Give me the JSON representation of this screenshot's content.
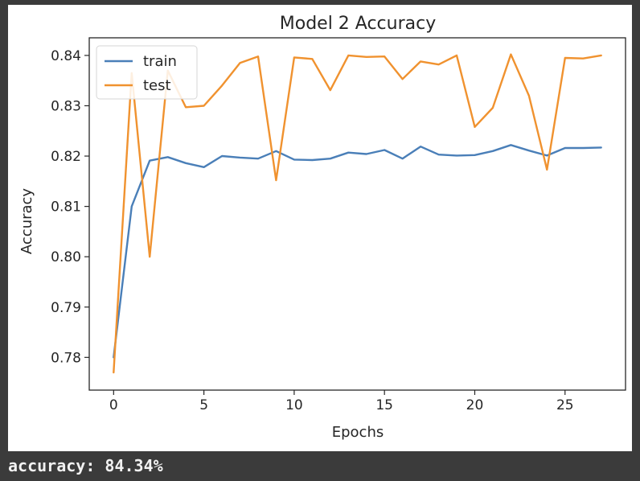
{
  "notebook": {
    "output_text": "accuracy: 84.34%"
  },
  "chart_data": {
    "type": "line",
    "title": "Model 2 Accuracy",
    "xlabel": "Epochs",
    "ylabel": "Accuracy",
    "x": [
      0,
      1,
      2,
      3,
      4,
      5,
      6,
      7,
      8,
      9,
      10,
      11,
      12,
      13,
      14,
      15,
      16,
      17,
      18,
      19,
      20,
      21,
      22,
      23,
      24,
      25,
      26,
      27
    ],
    "xlim": [
      -1.35,
      28.35
    ],
    "ylim": [
      0.7735,
      0.8435
    ],
    "xticks": [
      0,
      5,
      10,
      15,
      20,
      25
    ],
    "xtick_labels": [
      "0",
      "5",
      "10",
      "15",
      "20",
      "25"
    ],
    "yticks": [
      0.78,
      0.79,
      0.8,
      0.81,
      0.82,
      0.83,
      0.84
    ],
    "ytick_labels": [
      "0.78",
      "0.79",
      "0.80",
      "0.81",
      "0.82",
      "0.83",
      "0.84"
    ],
    "grid": false,
    "legend_position": "top-left",
    "series": [
      {
        "name": "train",
        "color": "#4a7fb8",
        "values": [
          0.78,
          0.81,
          0.8191,
          0.8198,
          0.8186,
          0.8178,
          0.82,
          0.8197,
          0.8195,
          0.821,
          0.8193,
          0.8192,
          0.8195,
          0.8207,
          0.8204,
          0.8212,
          0.8195,
          0.8219,
          0.8203,
          0.8201,
          0.8202,
          0.821,
          0.8222,
          0.8211,
          0.8201,
          0.8216,
          0.8216,
          0.8217
        ]
      },
      {
        "name": "test",
        "color": "#f0922f",
        "values": [
          0.777,
          0.8365,
          0.8,
          0.837,
          0.8297,
          0.83,
          0.834,
          0.8385,
          0.8398,
          0.8152,
          0.8396,
          0.8393,
          0.8331,
          0.84,
          0.8397,
          0.8398,
          0.8353,
          0.8388,
          0.8382,
          0.84,
          0.8258,
          0.8296,
          0.8402,
          0.832,
          0.8173,
          0.8395,
          0.8394,
          0.84
        ]
      }
    ]
  }
}
